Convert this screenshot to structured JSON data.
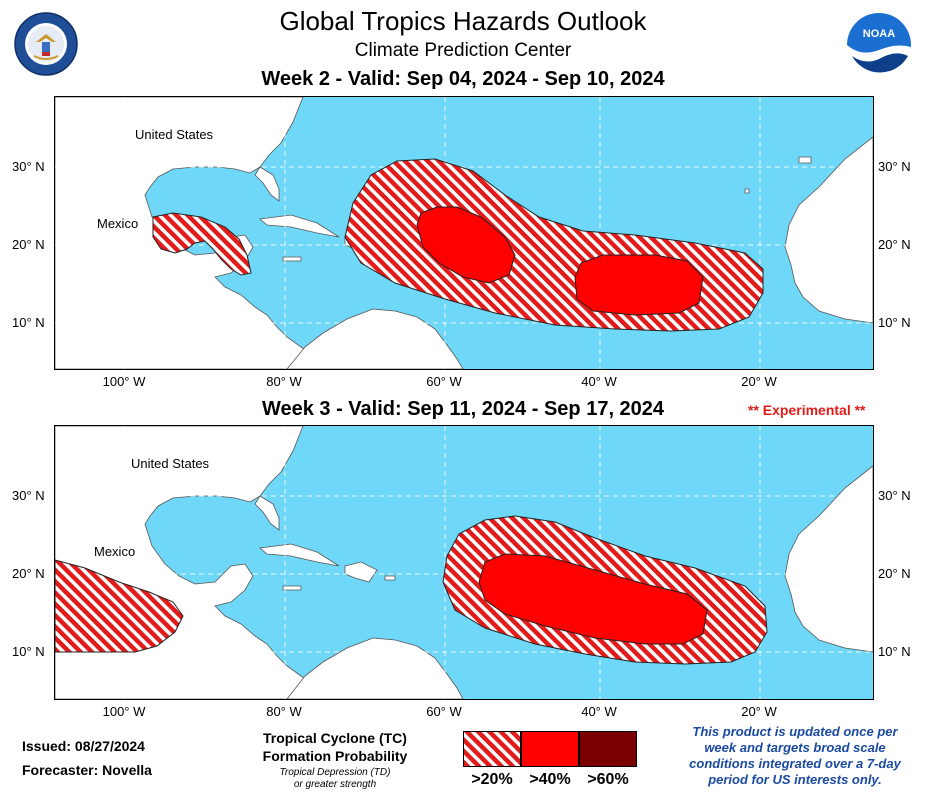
{
  "header": {
    "title": "Global Tropics Hazards Outlook",
    "subtitle": "Climate Prediction Center"
  },
  "maps": {
    "week2": {
      "title": "Week 2 - Valid: Sep 04, 2024 - Sep 10, 2024",
      "label_us": "United States",
      "label_mexico": "Mexico"
    },
    "week3": {
      "title": "Week 3 - Valid: Sep 11, 2024 - Sep 17, 2024",
      "experimental": "** Experimental **",
      "label_us": "United States",
      "label_mexico": "Mexico"
    },
    "lat_labels": [
      "30° N",
      "20° N",
      "10° N"
    ],
    "lon_labels": [
      "100° W",
      "80° W",
      "60° W",
      "40° W",
      "20° W"
    ]
  },
  "footer": {
    "issued": "Issued: 08/27/2024",
    "forecaster": "Forecaster: Novella",
    "legend_title_line1": "Tropical Cyclone (TC)",
    "legend_title_line2": "Formation Probability",
    "legend_note_line1": "Tropical Depression (TD)",
    "legend_note_line2": "or greater strength",
    "legend_labels": [
      ">20%",
      ">40%",
      ">60%"
    ],
    "disclaimer_line1": "This product is updated once per",
    "disclaimer_line2": "week and targets broad scale",
    "disclaimer_line3": "conditions integrated over a 7-day",
    "disclaimer_line4": "period for US interests only."
  },
  "logos": {
    "left": "dept-of-commerce-seal",
    "right_text": "NOAA"
  },
  "colors": {
    "ocean": "#6fd8f8",
    "land": "#ffffff",
    "prob20": "#e21b1b",
    "prob40": "#ff0000",
    "prob60": "#7a0000",
    "experimental": "#e21b1b",
    "disclaimer": "#1b4aa3"
  }
}
